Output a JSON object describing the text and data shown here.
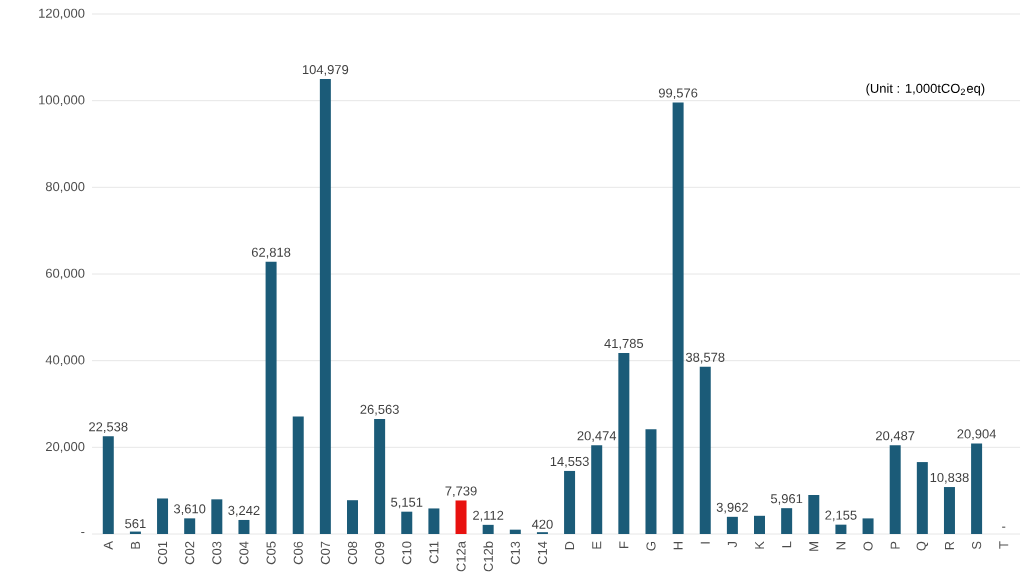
{
  "chart_data": {
    "type": "bar",
    "categories": [
      "A",
      "B",
      "C01",
      "C02",
      "C03",
      "C04",
      "C05",
      "C06",
      "C07",
      "C08",
      "C09",
      "C10",
      "C11",
      "C12a",
      "C12b",
      "C13",
      "C14",
      "D",
      "E",
      "F",
      "G",
      "H",
      "I",
      "J",
      "K",
      "L",
      "M",
      "N",
      "O",
      "P",
      "Q",
      "R",
      "S",
      "T"
    ],
    "values": [
      22538,
      561,
      8200,
      3610,
      8000,
      3242,
      62818,
      27100,
      104979,
      7800,
      26563,
      5151,
      5900,
      7739,
      2112,
      1000,
      420,
      14553,
      20474,
      41785,
      24200,
      99576,
      38578,
      3962,
      4200,
      5961,
      9000,
      2155,
      3600,
      20487,
      16600,
      10838,
      20904,
      0
    ],
    "value_labels": [
      "22,538",
      "561",
      null,
      "3,610",
      null,
      "3,242",
      "62,818",
      null,
      "104,979",
      null,
      "26,563",
      "5,151",
      null,
      "7,739",
      "2,112",
      null,
      "420",
      "14,553",
      "20,474",
      "41,785",
      null,
      "99,576",
      "38,578",
      "3,962",
      null,
      "5,961",
      null,
      "2,155",
      null,
      "20,487",
      null,
      "10,838",
      "20,904",
      "-"
    ],
    "colors": [
      "#1b5b78",
      "#1b5b78",
      "#1b5b78",
      "#1b5b78",
      "#1b5b78",
      "#1b5b78",
      "#1b5b78",
      "#1b5b78",
      "#1b5b78",
      "#1b5b78",
      "#1b5b78",
      "#1b5b78",
      "#1b5b78",
      "#e8110f",
      "#1b5b78",
      "#1b5b78",
      "#1b5b78",
      "#1b5b78",
      "#1b5b78",
      "#1b5b78",
      "#1b5b78",
      "#1b5b78",
      "#1b5b78",
      "#1b5b78",
      "#1b5b78",
      "#1b5b78",
      "#1b5b78",
      "#1b5b78",
      "#1b5b78",
      "#1b5b78",
      "#1b5b78",
      "#1b5b78",
      "#1b5b78",
      "#1b5b78"
    ],
    "ylim": [
      0,
      120000
    ],
    "yticks": [
      {
        "value": 0,
        "label": "-"
      },
      {
        "value": 20000,
        "label": "20,000"
      },
      {
        "value": 40000,
        "label": "40,000"
      },
      {
        "value": 60000,
        "label": "60,000"
      },
      {
        "value": 80000,
        "label": "80,000"
      },
      {
        "value": 100000,
        "label": "100,000"
      },
      {
        "value": 120000,
        "label": "120,000"
      }
    ],
    "grid": "y",
    "annotations": [
      "(Unit : 1,000tCO$_{2}$eq)"
    ]
  }
}
